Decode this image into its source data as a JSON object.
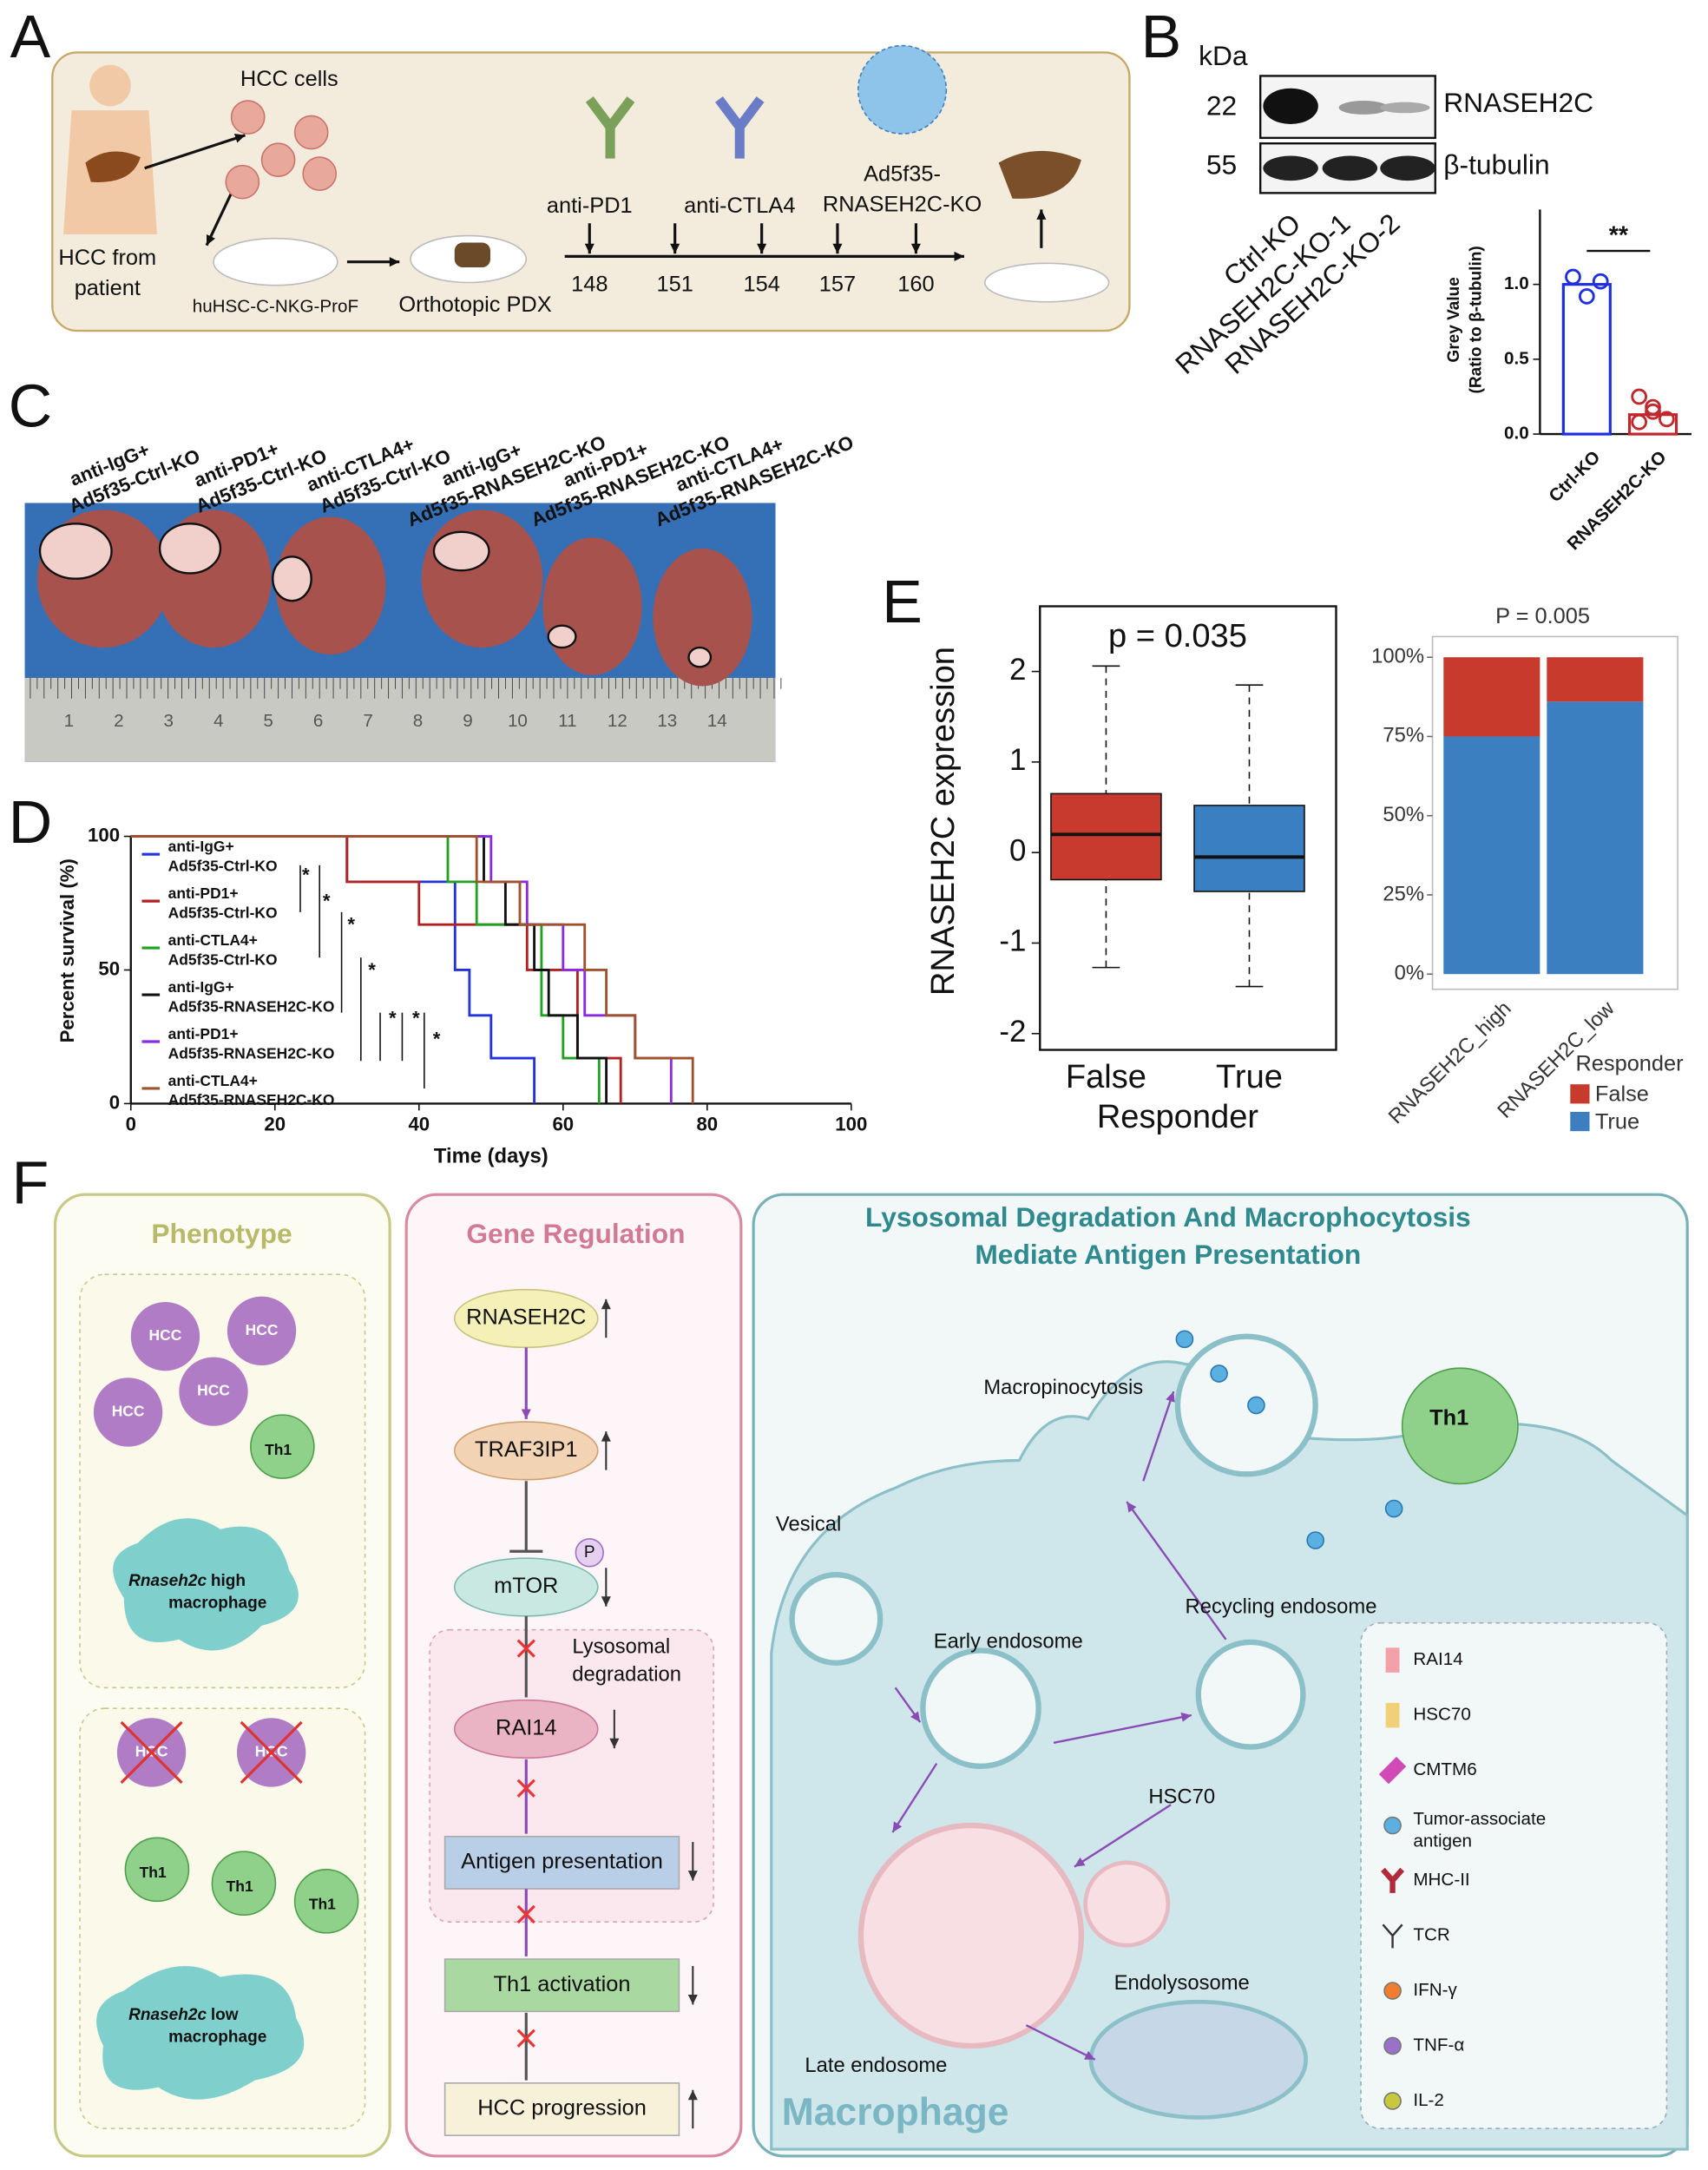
{
  "panel_labels": [
    "A",
    "B",
    "C",
    "D",
    "E",
    "F"
  ],
  "panel_a": {
    "hcc_cells": "HCC cells",
    "patient": [
      "HCC from",
      "patient"
    ],
    "mouse": "huHSC-C-NKG-ProF",
    "pdx": "Orthotopic PDX",
    "treatments": [
      "anti-PD1",
      "anti-CTLA4",
      "Ad5f35-",
      "RNASEH2C-KO"
    ],
    "days": [
      148,
      151,
      154,
      157,
      160
    ]
  },
  "panel_b": {
    "unit": "kDa",
    "markers": [
      22,
      55
    ],
    "proteins": [
      "RNASEH2C",
      "β-tubulin"
    ],
    "lanes": [
      "Ctrl-KO",
      "RNASEH2C-KO-1",
      "RNASEH2C-KO-2"
    ]
  },
  "panel_c": {
    "groups": [
      [
        "anti-IgG+",
        "Ad5f35-Ctrl-KO"
      ],
      [
        "anti-PD1+",
        "Ad5f35-Ctrl-KO"
      ],
      [
        "anti-CTLA4+",
        "Ad5f35-Ctrl-KO"
      ],
      [
        "anti-IgG+",
        "Ad5f35-RNASEH2C-KO"
      ],
      [
        "anti-PD1+",
        "Ad5f35-RNASEH2C-KO"
      ],
      [
        "anti-CTLA4+",
        "Ad5f35-RNASEH2C-KO"
      ]
    ],
    "ruler": [
      1,
      2,
      3,
      4,
      5,
      6,
      7,
      8,
      9,
      10,
      11,
      12,
      13,
      14
    ]
  },
  "panel_f": {
    "phenotype": {
      "title": "Phenotype",
      "cell": "HCC",
      "th1": "Th1",
      "gene": "Rnaseh2c",
      "high": "high",
      "low": "low",
      "macrophage": "macrophage"
    },
    "gene_regulation": {
      "title": "Gene Regulation",
      "nodes": [
        "RNASEH2C",
        "TRAF3IP1",
        "mTOR",
        "RAI14",
        "Antigen presentation",
        "Th1 activation",
        "HCC progression"
      ],
      "phospho": "P",
      "lysosomal": [
        "Lysosomal",
        "degradation"
      ]
    },
    "mechanism": {
      "title": [
        "Lysosomal Degradation And Macrophocytosis",
        "Mediate Antigen Presentation"
      ],
      "macropinocytosis": "Macropinocytosis",
      "vesical": "Vesical",
      "early": "Early endosome",
      "recycling": "Recycling endosome",
      "hsc70": "HSC70",
      "late": "Late endosome",
      "endolysosome": "Endolysosome",
      "cell": "Macrophage",
      "th1": "Th1"
    },
    "legend": [
      [
        "RAI14"
      ],
      [
        "HSC70"
      ],
      [
        "CMTM6"
      ],
      [
        "Tumor-associate",
        "antigen"
      ],
      [
        "MHC-II"
      ],
      [
        "TCR"
      ],
      [
        "IFN-γ"
      ],
      [
        "TNF-α"
      ],
      [
        "IL-2"
      ]
    ]
  },
  "chart_data": [
    {
      "type": "bar",
      "y_label": [
        "Grey Value",
        "(Ratio to β-tubulin)"
      ],
      "categories": [
        "Ctrl-KO",
        "RNASEH2C-KO"
      ],
      "values": [
        1.0,
        0.13
      ],
      "points": [
        [
          1.05,
          0.92,
          1.02
        ],
        [
          0.25,
          0.15,
          0.1,
          0.08,
          0.18
        ]
      ],
      "colors": [
        "#1f2fe0",
        "#c0282d"
      ],
      "ylim": [
        0,
        1.5
      ],
      "yticks": [
        {
          "value": 0,
          "label": "0.0"
        },
        {
          "value": 0.5,
          "label": "0.5"
        },
        {
          "value": 1,
          "label": "1.0"
        }
      ],
      "annotations": [
        "**"
      ]
    },
    {
      "type": "line",
      "steps": true,
      "x_label": "Time (days)",
      "y_label": "Percent survival (%)",
      "xlim": [
        0,
        100
      ],
      "ylim": [
        0,
        100
      ],
      "xticks": [
        0,
        20,
        40,
        60,
        80,
        100
      ],
      "yticks": [
        0,
        50,
        100
      ],
      "series": [
        {
          "name": "anti-IgG+ Ad5f35-Ctrl-KO",
          "color": "#2233dd",
          "x": [
            0,
            30,
            45,
            47,
            50,
            56
          ],
          "values": [
            100,
            83,
            50,
            33,
            17,
            0
          ]
        },
        {
          "name": "anti-PD1+ Ad5f35-Ctrl-KO",
          "color": "#b22222",
          "x": [
            0,
            30,
            40,
            55,
            62,
            68
          ],
          "values": [
            100,
            83,
            67,
            50,
            17,
            0
          ]
        },
        {
          "name": "anti-CTLA4+ Ad5f35-Ctrl-KO",
          "color": "#22a022",
          "x": [
            0,
            44,
            48,
            57,
            60,
            65
          ],
          "values": [
            100,
            83,
            67,
            33,
            17,
            0
          ]
        },
        {
          "name": "anti-IgG+ Ad5f35-RNASEH2C-KO",
          "color": "#111111",
          "x": [
            0,
            49,
            52,
            56,
            58,
            62,
            66
          ],
          "values": [
            100,
            83,
            67,
            50,
            33,
            17,
            0
          ]
        },
        {
          "name": "anti-PD1+ Ad5f35-RNASEH2C-KO",
          "color": "#8a2be2",
          "x": [
            0,
            50,
            55,
            60,
            63,
            70,
            75
          ],
          "values": [
            100,
            83,
            67,
            50,
            33,
            17,
            0
          ]
        },
        {
          "name": "anti-CTLA4+ Ad5f35-RNASEH2C-KO",
          "color": "#a0522d",
          "x": [
            0,
            48,
            54,
            63,
            66,
            70,
            78
          ],
          "values": [
            100,
            83,
            67,
            50,
            33,
            17,
            0
          ]
        }
      ],
      "annotations": [
        "*",
        "*",
        "*",
        "*",
        "*",
        "*",
        "*"
      ]
    },
    {
      "type": "box",
      "x_label": "Responder",
      "y_label": "RNASEH2C expression",
      "categories": [
        "False",
        "True"
      ],
      "colors": [
        "#c93a2e",
        "#3a7fc1"
      ],
      "whisker_low": [
        -1.27,
        -1.48
      ],
      "q1": [
        -0.3,
        -0.43
      ],
      "median": [
        0.2,
        -0.05
      ],
      "q3": [
        0.65,
        0.52
      ],
      "whisker_high": [
        2.06,
        1.85
      ],
      "ylim": [
        -2.18,
        2.72
      ],
      "yticks": [
        -2,
        -1,
        0,
        1,
        2
      ],
      "annotations": [
        "p = 0.035"
      ]
    },
    {
      "type": "bar",
      "stacked": true,
      "title": "P = 0.005",
      "legend_title": "Responder",
      "categories": [
        "RNASEH2C_high",
        "RNASEH2C_low"
      ],
      "series": [
        {
          "name": "False",
          "color": "#c83a2b",
          "values": [
            25,
            14
          ]
        },
        {
          "name": "True",
          "color": "#3b7fc0",
          "values": [
            75,
            86
          ]
        }
      ],
      "ylim": [
        0,
        100
      ],
      "yticks": [
        {
          "value": 0,
          "label": "0%"
        },
        {
          "value": 25,
          "label": "25%"
        },
        {
          "value": 50,
          "label": "50%"
        },
        {
          "value": 75,
          "label": "75%"
        },
        {
          "value": 100,
          "label": "100%"
        }
      ]
    }
  ]
}
